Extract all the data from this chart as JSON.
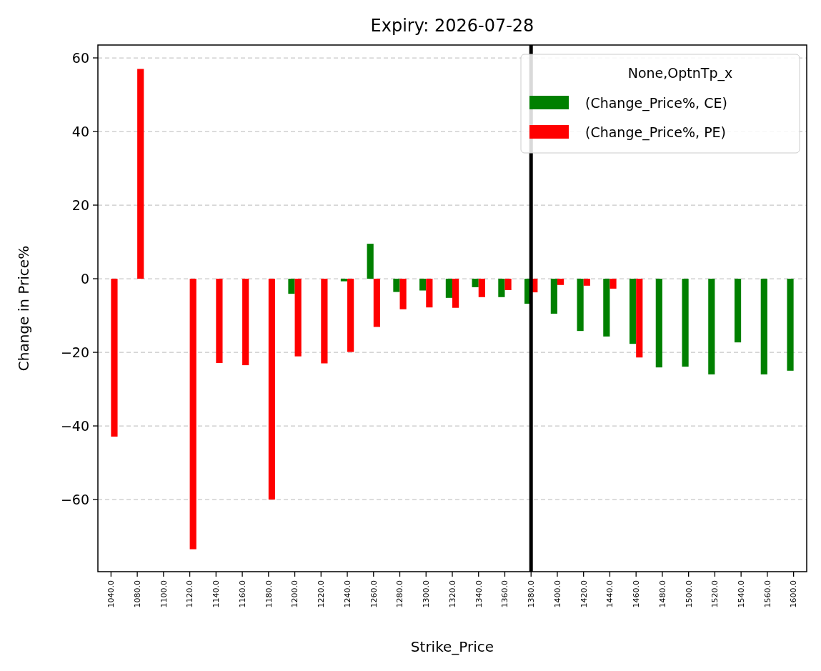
{
  "chart_data": {
    "type": "bar",
    "title": "Expiry: 2026-07-28",
    "xlabel": "Strike_Price",
    "ylabel": "Change in Price%",
    "legend_title": "None,OptnTp_x",
    "categories": [
      "1040.0",
      "1080.0",
      "1100.0",
      "1120.0",
      "1140.0",
      "1160.0",
      "1180.0",
      "1200.0",
      "1220.0",
      "1240.0",
      "1260.0",
      "1280.0",
      "1300.0",
      "1320.0",
      "1340.0",
      "1360.0",
      "1380.0",
      "1400.0",
      "1420.0",
      "1440.0",
      "1460.0",
      "1480.0",
      "1500.0",
      "1520.0",
      "1540.0",
      "1560.0",
      "1600.0"
    ],
    "series": [
      {
        "name": "(Change_Price%, CE)",
        "color": "#008000",
        "values": [
          null,
          null,
          null,
          null,
          null,
          null,
          null,
          -4.1,
          null,
          -0.7,
          9.5,
          -3.6,
          -3.2,
          -5.2,
          -2.3,
          -5.0,
          -6.8,
          -9.5,
          -14.2,
          -15.7,
          -17.7,
          -24.1,
          -23.9,
          -26.0,
          -17.3,
          -26.0,
          -25.0
        ]
      },
      {
        "name": "(Change_Price%, PE)",
        "color": "#ff0000",
        "values": [
          -42.9,
          57.0,
          null,
          -73.5,
          -22.9,
          -23.5,
          -60.0,
          -21.1,
          -23.0,
          -19.9,
          -13.1,
          -8.3,
          -7.8,
          -7.9,
          -5.0,
          -3.1,
          -3.7,
          -1.7,
          -1.9,
          -2.7,
          -21.4,
          null,
          null,
          null,
          null,
          null,
          null
        ]
      }
    ],
    "ylim": [
      -79.6,
      63.5
    ],
    "yticks": [
      {
        "value": -60,
        "label": "−60"
      },
      {
        "value": -40,
        "label": "−40"
      },
      {
        "value": -20,
        "label": "−20"
      },
      0,
      20,
      40,
      60
    ],
    "grid": "y",
    "legend": "top right",
    "ref_lines": [
      {
        "axis": "x",
        "value": "1380.0",
        "color": "#000000"
      }
    ]
  }
}
